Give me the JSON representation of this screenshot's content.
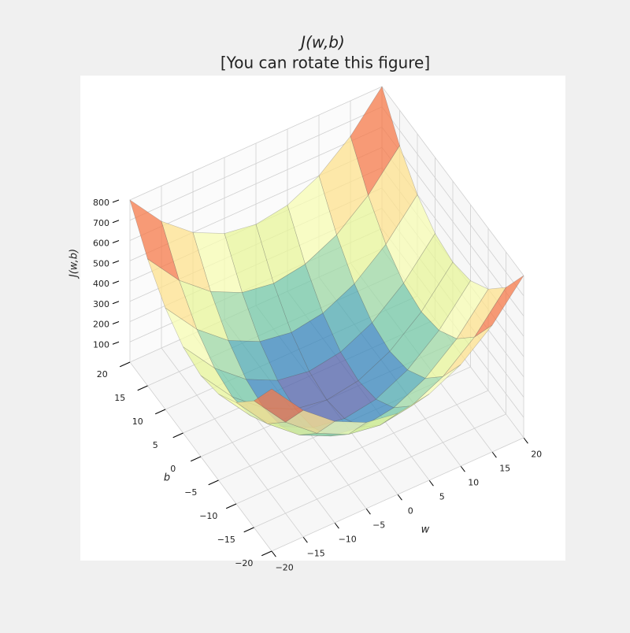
{
  "chart_data": {
    "type": "surface3d",
    "title": [
      "J(w,b)",
      "[You can rotate this figure]"
    ],
    "xlabel": "w",
    "ylabel": "b",
    "zlabel": "J(w,b)",
    "x": [
      -20,
      -15,
      -10,
      -5,
      0,
      5,
      10,
      15,
      20
    ],
    "y": [
      -20,
      -15,
      -10,
      -5,
      0,
      5,
      10,
      15,
      20
    ],
    "z": [
      [
        800,
        625,
        500,
        425,
        400,
        425,
        500,
        625,
        800
      ],
      [
        625,
        450,
        325,
        250,
        225,
        250,
        325,
        450,
        625
      ],
      [
        500,
        325,
        200,
        125,
        100,
        125,
        200,
        325,
        500
      ],
      [
        425,
        250,
        125,
        50,
        25,
        50,
        125,
        250,
        425
      ],
      [
        400,
        225,
        100,
        25,
        0,
        25,
        100,
        225,
        400
      ],
      [
        425,
        250,
        125,
        50,
        25,
        50,
        125,
        250,
        425
      ],
      [
        500,
        325,
        200,
        125,
        100,
        125,
        200,
        325,
        500
      ],
      [
        625,
        450,
        325,
        250,
        225,
        250,
        325,
        450,
        625
      ],
      [
        800,
        625,
        500,
        425,
        400,
        425,
        500,
        625,
        800
      ]
    ],
    "xlim": [
      -20,
      20
    ],
    "ylim": [
      -20,
      20
    ],
    "zlim": [
      0,
      800
    ],
    "xticks": [
      {
        "value": -20,
        "label": "−20"
      },
      {
        "value": -15,
        "label": "−15"
      },
      {
        "value": -10,
        "label": "−10"
      },
      {
        "value": -5,
        "label": "−5"
      },
      0,
      5,
      10,
      15,
      20
    ],
    "yticks": [
      {
        "value": -20,
        "label": "−20"
      },
      {
        "value": -15,
        "label": "−15"
      },
      {
        "value": -10,
        "label": "−10"
      },
      {
        "value": -5,
        "label": "−5"
      },
      0,
      5,
      10,
      15,
      20
    ],
    "zticks": [
      100,
      200,
      300,
      400,
      500,
      600,
      700,
      800
    ],
    "colormap": "Spectral_r",
    "grid": true
  }
}
